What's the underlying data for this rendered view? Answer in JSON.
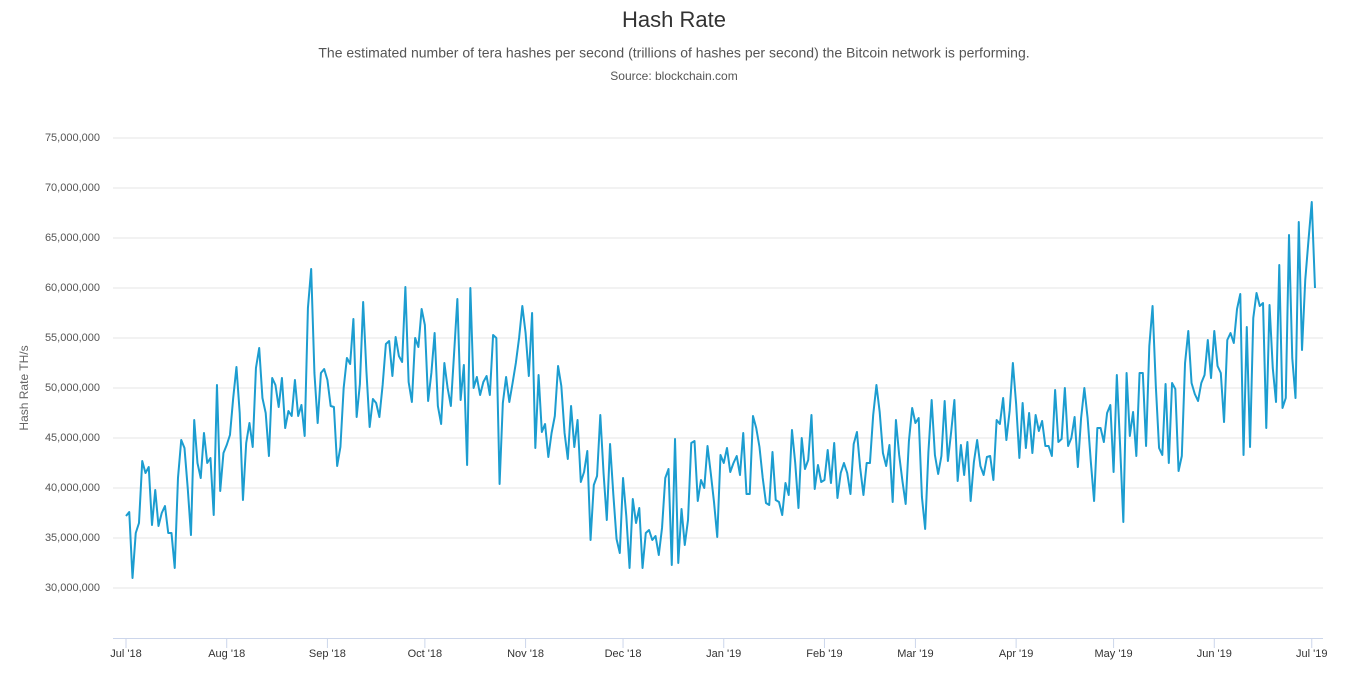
{
  "chart_data": {
    "type": "line",
    "title": "Hash Rate",
    "subtitle": "The estimated number of tera hashes per second (trillions of hashes per second) the Bitcoin network is performing.",
    "source": "Source: blockchain.com",
    "ylabel": "Hash Rate TH/s",
    "color": "#1c9dd0",
    "grid": true,
    "ylim": [
      25000000,
      75000000
    ],
    "yticks": [
      {
        "value": 30000000,
        "label": "30,000,000"
      },
      {
        "value": 35000000,
        "label": "35,000,000"
      },
      {
        "value": 40000000,
        "label": "40,000,000"
      },
      {
        "value": 45000000,
        "label": "45,000,000"
      },
      {
        "value": 50000000,
        "label": "50,000,000"
      },
      {
        "value": 55000000,
        "label": "55,000,000"
      },
      {
        "value": 60000000,
        "label": "60,000,000"
      },
      {
        "value": 65000000,
        "label": "65,000,000"
      },
      {
        "value": 70000000,
        "label": "70,000,000"
      },
      {
        "value": 75000000,
        "label": "75,000,000"
      }
    ],
    "categories": [
      "Jul '18",
      null,
      null,
      null,
      null,
      null,
      null,
      null,
      null,
      null,
      null,
      null,
      null,
      null,
      null,
      null,
      null,
      null,
      null,
      null,
      null,
      null,
      null,
      null,
      null,
      null,
      null,
      null,
      null,
      null,
      null,
      "Aug '18",
      null,
      null,
      null,
      null,
      null,
      null,
      null,
      null,
      null,
      null,
      null,
      null,
      null,
      null,
      null,
      null,
      null,
      null,
      null,
      null,
      null,
      null,
      null,
      null,
      null,
      null,
      null,
      null,
      null,
      null,
      "Sep '18",
      null,
      null,
      null,
      null,
      null,
      null,
      null,
      null,
      null,
      null,
      null,
      null,
      null,
      null,
      null,
      null,
      null,
      null,
      null,
      null,
      null,
      null,
      null,
      null,
      null,
      null,
      null,
      null,
      null,
      "Oct '18",
      null,
      null,
      null,
      null,
      null,
      null,
      null,
      null,
      null,
      null,
      null,
      null,
      null,
      null,
      null,
      null,
      null,
      null,
      null,
      null,
      null,
      null,
      null,
      null,
      null,
      null,
      null,
      null,
      null,
      null,
      "Nov '18",
      null,
      null,
      null,
      null,
      null,
      null,
      null,
      null,
      null,
      null,
      null,
      null,
      null,
      null,
      null,
      null,
      null,
      null,
      null,
      null,
      null,
      null,
      null,
      null,
      null,
      null,
      null,
      null,
      null,
      "Dec '18",
      null,
      null,
      null,
      null,
      null,
      null,
      null,
      null,
      null,
      null,
      null,
      null,
      null,
      null,
      null,
      null,
      null,
      null,
      null,
      null,
      null,
      null,
      null,
      null,
      null,
      null,
      null,
      null,
      null,
      null,
      "Jan '19",
      null,
      null,
      null,
      null,
      null,
      null,
      null,
      null,
      null,
      null,
      null,
      null,
      null,
      null,
      null,
      null,
      null,
      null,
      null,
      null,
      null,
      null,
      null,
      null,
      null,
      null,
      null,
      null,
      null,
      null,
      "Feb '19",
      null,
      null,
      null,
      null,
      null,
      null,
      null,
      null,
      null,
      null,
      null,
      null,
      null,
      null,
      null,
      null,
      null,
      null,
      null,
      null,
      null,
      null,
      null,
      null,
      null,
      null,
      null,
      "Mar '19",
      null,
      null,
      null,
      null,
      null,
      null,
      null,
      null,
      null,
      null,
      null,
      null,
      null,
      null,
      null,
      null,
      null,
      null,
      null,
      null,
      null,
      null,
      null,
      null,
      null,
      null,
      null,
      null,
      null,
      null,
      "Apr '19",
      null,
      null,
      null,
      null,
      null,
      null,
      null,
      null,
      null,
      null,
      null,
      null,
      null,
      null,
      null,
      null,
      null,
      null,
      null,
      null,
      null,
      null,
      null,
      null,
      null,
      null,
      null,
      null,
      null,
      "May '19",
      null,
      null,
      null,
      null,
      null,
      null,
      null,
      null,
      null,
      null,
      null,
      null,
      null,
      null,
      null,
      null,
      null,
      null,
      null,
      null,
      null,
      null,
      null,
      null,
      null,
      null,
      null,
      null,
      null,
      null,
      "Jun '19",
      null,
      null,
      null,
      null,
      null,
      null,
      null,
      null,
      null,
      null,
      null,
      null,
      null,
      null,
      null,
      null,
      null,
      null,
      null,
      null,
      null,
      null,
      null,
      null,
      null,
      null,
      null,
      null,
      null,
      "Jul '19",
      null
    ],
    "values": [
      37200000,
      37600000,
      31000000,
      35500000,
      36500000,
      42700000,
      41500000,
      42100000,
      36300000,
      39800000,
      36200000,
      37500000,
      38200000,
      35500000,
      35500000,
      32000000,
      41000000,
      44800000,
      44000000,
      40000000,
      35300000,
      46800000,
      42500000,
      41000000,
      45500000,
      42500000,
      43000000,
      37300000,
      50300000,
      39700000,
      43500000,
      44300000,
      45300000,
      49000000,
      52100000,
      47500000,
      38800000,
      44500000,
      46500000,
      44100000,
      52000000,
      54000000,
      49000000,
      47500000,
      43200000,
      51000000,
      50300000,
      48100000,
      51000000,
      46000000,
      47700000,
      47200000,
      50800000,
      47200000,
      48300000,
      45200000,
      58000000,
      61900000,
      51500000,
      46500000,
      51500000,
      51900000,
      50800000,
      48200000,
      48100000,
      42200000,
      44100000,
      50000000,
      53000000,
      52400000,
      56900000,
      47100000,
      50400000,
      58600000,
      51700000,
      46100000,
      48900000,
      48500000,
      47100000,
      50300000,
      54400000,
      54700000,
      51200000,
      55100000,
      53200000,
      52600000,
      60100000,
      50600000,
      48600000,
      55000000,
      54100000,
      57900000,
      56300000,
      48700000,
      51500000,
      55500000,
      48200000,
      46400000,
      52500000,
      50000000,
      48200000,
      53500000,
      58900000,
      48800000,
      52300000,
      42300000,
      60000000,
      50000000,
      51100000,
      49300000,
      50600000,
      51200000,
      49300000,
      55300000,
      55000000,
      40400000,
      48500000,
      51100000,
      48600000,
      50500000,
      52500000,
      55000000,
      58200000,
      55500000,
      51200000,
      57500000,
      44000000,
      51300000,
      45600000,
      46400000,
      43100000,
      45500000,
      47200000,
      52200000,
      50200000,
      45500000,
      42900000,
      48200000,
      44100000,
      46800000,
      40600000,
      41600000,
      43700000,
      34800000,
      40300000,
      41200000,
      47300000,
      41500000,
      36800000,
      44400000,
      39400000,
      34900000,
      33500000,
      41000000,
      37200000,
      32000000,
      38900000,
      36500000,
      38000000,
      32000000,
      35500000,
      35800000,
      34800000,
      35200000,
      33300000,
      36000000,
      41000000,
      41900000,
      32300000,
      44900000,
      32500000,
      37900000,
      34300000,
      36800000,
      44500000,
      44700000,
      38700000,
      40800000,
      40000000,
      44200000,
      41500000,
      38600000,
      35100000,
      43300000,
      42500000,
      44000000,
      41600000,
      42500000,
      43200000,
      41300000,
      45500000,
      39400000,
      39400000,
      47200000,
      46000000,
      44100000,
      41000000,
      38500000,
      38300000,
      43600000,
      38800000,
      38600000,
      37300000,
      40500000,
      39300000,
      45800000,
      42500000,
      38000000,
      45000000,
      41900000,
      42800000,
      47300000,
      39900000,
      42300000,
      40600000,
      40800000,
      43800000,
      40500000,
      44500000,
      39000000,
      41500000,
      42500000,
      41500000,
      39400000,
      44400000,
      45600000,
      42000000,
      39300000,
      42500000,
      42500000,
      47300000,
      50300000,
      47600000,
      43500000,
      42200000,
      44300000,
      38600000,
      46800000,
      43300000,
      40700000,
      38400000,
      44700000,
      48000000,
      46500000,
      47000000,
      39100000,
      35900000,
      43600000,
      48800000,
      43300000,
      41400000,
      43200000,
      48700000,
      42700000,
      45600000,
      48800000,
      40700000,
      44300000,
      41300000,
      44600000,
      38700000,
      42600000,
      44800000,
      42200000,
      41300000,
      43100000,
      43200000,
      40800000,
      46800000,
      46400000,
      49000000,
      44800000,
      47700000,
      52500000,
      48400000,
      43000000,
      48500000,
      44000000,
      47500000,
      43500000,
      47300000,
      45700000,
      46700000,
      44200000,
      44200000,
      43200000,
      49800000,
      44600000,
      44900000,
      50000000,
      44200000,
      45000000,
      47100000,
      42100000,
      47000000,
      50000000,
      47000000,
      42600000,
      38700000,
      46000000,
      46000000,
      44600000,
      47500000,
      48300000,
      41600000,
      51300000,
      44300000,
      36600000,
      51500000,
      45200000,
      47600000,
      43200000,
      51500000,
      51500000,
      44200000,
      54200000,
      58200000,
      50200000,
      44000000,
      43300000,
      50400000,
      42500000,
      50500000,
      49900000,
      41700000,
      43200000,
      52500000,
      55700000,
      50500000,
      49400000,
      48700000,
      50500000,
      51300000,
      54800000,
      51000000,
      55700000,
      52200000,
      51500000,
      46600000,
      54800000,
      55500000,
      54500000,
      57900000,
      59400000,
      43300000,
      56100000,
      44100000,
      57000000,
      59500000,
      58200000,
      58500000,
      46000000,
      58300000,
      52000000,
      48600000,
      62300000,
      48000000,
      49000000,
      65300000,
      53000000,
      49000000,
      66600000,
      53800000,
      60800000,
      64800000,
      68600000,
      60000000
    ]
  }
}
